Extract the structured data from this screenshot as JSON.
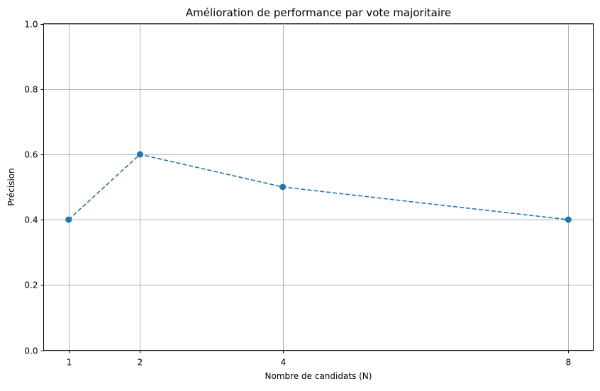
{
  "chart_data": {
    "type": "line",
    "title": "Amélioration de performance par vote majoritaire",
    "xlabel": "Nombre de candidats (N)",
    "ylabel": "Précision",
    "x": [
      1,
      2,
      4,
      8
    ],
    "xticks": [
      "1",
      "2",
      "4",
      "8"
    ],
    "yticks": [
      "0.0",
      "0.2",
      "0.4",
      "0.6",
      "0.8",
      "1.0"
    ],
    "ylim": [
      0,
      1
    ],
    "xlim": [
      0.65,
      8.35
    ],
    "grid": true,
    "series": [
      {
        "values": [
          0.4,
          0.6,
          0.5,
          0.4
        ],
        "color": "#1f77b4",
        "line_style": "dashed",
        "marker": "circle"
      }
    ]
  }
}
